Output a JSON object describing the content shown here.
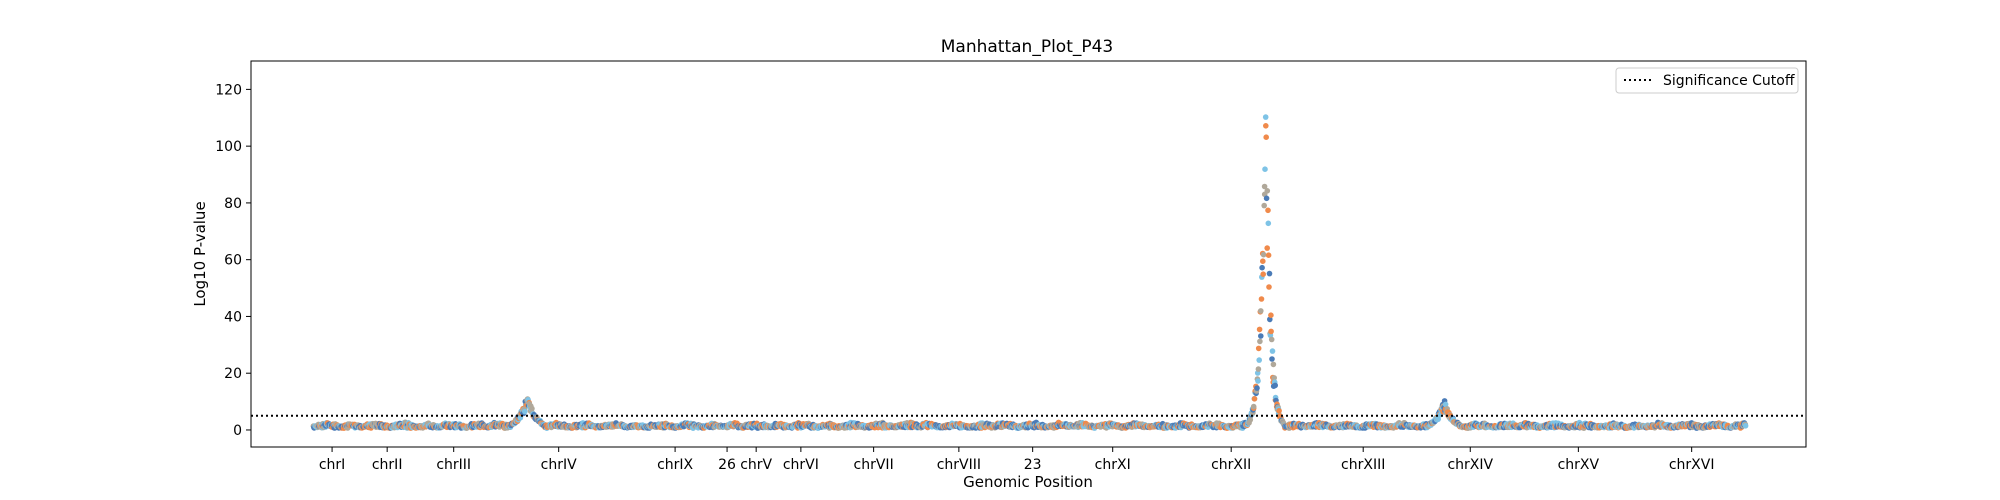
{
  "chart_data": {
    "type": "scatter",
    "title": "Manhattan_Plot_P43",
    "xlabel": "Genomic Position",
    "ylabel": "Log10 P-value",
    "ylim": [
      -6,
      130
    ],
    "yticks": [
      0,
      20,
      40,
      60,
      80,
      100,
      120
    ],
    "grid": false,
    "legend": {
      "placement": "top-right",
      "entries": [
        "Significance Cutoff"
      ]
    },
    "threshold": {
      "name": "Significance Cutoff",
      "value": 5,
      "style": "dotted",
      "color": "#000000"
    },
    "colors": {
      "light": "#7ec3e6",
      "orange": "#f08a4b",
      "blue": "#4a7bb7",
      "gray": "#b0a89a"
    },
    "chromosomes": [
      {
        "label": "chrI",
        "start": 0.0,
        "end": 1.8,
        "tick": 0.9
      },
      {
        "label": "chrII",
        "start": 1.8,
        "end": 5.3,
        "tick": 3.55
      },
      {
        "label": "chrIII",
        "start": 5.3,
        "end": 8.2,
        "tick": 6.75
      },
      {
        "label": "chrIV",
        "start": 8.2,
        "end": 15.4,
        "tick": 11.8
      },
      {
        "label": "chrIX",
        "start": 15.4,
        "end": 19.4,
        "tick": 17.4
      },
      {
        "label": "26",
        "start": 19.4,
        "end": 20.4,
        "tick": 19.9
      },
      {
        "label": "chrV",
        "start": 20.4,
        "end": 22.2,
        "tick": 21.3
      },
      {
        "label": "chrVI",
        "start": 22.2,
        "end": 24.7,
        "tick": 23.45
      },
      {
        "label": "chrVII",
        "start": 24.7,
        "end": 29.2,
        "tick": 26.95
      },
      {
        "label": "chrVIII",
        "start": 29.2,
        "end": 32.9,
        "tick": 31.05
      },
      {
        "label": "23",
        "start": 32.9,
        "end": 36.3,
        "tick": 34.6
      },
      {
        "label": "chrXI",
        "start": 36.3,
        "end": 40.6,
        "tick": 38.45
      },
      {
        "label": "chrXII",
        "start": 40.6,
        "end": 47.7,
        "tick": 44.15
      },
      {
        "label": "chrXIII",
        "start": 47.7,
        "end": 53.3,
        "tick": 50.5
      },
      {
        "label": "chrXIV",
        "start": 53.3,
        "end": 58.0,
        "tick": 55.65
      },
      {
        "label": "chrXV",
        "start": 58.0,
        "end": 63.7,
        "tick": 60.85
      },
      {
        "label": "chrXVI",
        "start": 63.7,
        "end": 68.9,
        "tick": 66.3
      }
    ],
    "peaks": [
      {
        "x": 10.3,
        "y": 12
      },
      {
        "x": 45.8,
        "y": 124
      },
      {
        "x": 54.4,
        "y": 10
      }
    ],
    "xlim": [
      -3.0,
      71.8
    ]
  }
}
